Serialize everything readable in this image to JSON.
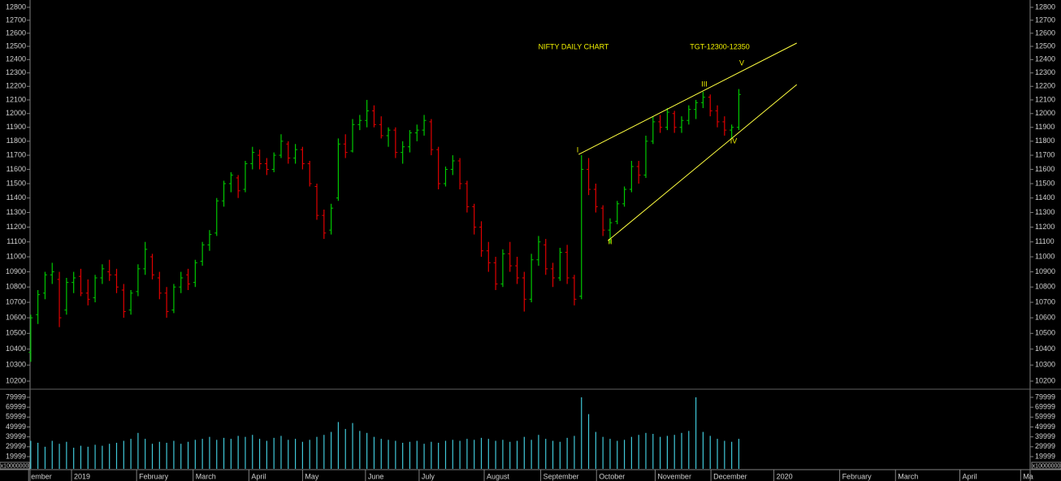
{
  "chart_data": {
    "type": "ohlc",
    "title": "NIFTY DAILY CHART",
    "annotations": [
      "TGT-12300-12350",
      "I",
      "II",
      "III",
      "IV",
      "V"
    ],
    "up_color": "#00c800",
    "down_color": "#e00000",
    "log_scale": true,
    "ylim": [
      10155,
      12857
    ],
    "yticks": [
      10200,
      10300,
      10400,
      10500,
      10600,
      10700,
      10800,
      10900,
      11000,
      11100,
      11200,
      11300,
      11400,
      11500,
      11600,
      11700,
      11800,
      11900,
      12000,
      12100,
      12200,
      12300,
      12400,
      12500,
      12600,
      12700,
      12800
    ],
    "xlim": [
      -4.3,
      139.5
    ],
    "xticks": [
      {
        "value": -0.3,
        "label": "ember"
      },
      {
        "value": 5.7,
        "label": "2019"
      },
      {
        "value": 14.8,
        "label": "February"
      },
      {
        "value": 22.7,
        "label": "March"
      },
      {
        "value": 30.5,
        "label": "April"
      },
      {
        "value": 38.0,
        "label": "May"
      },
      {
        "value": 46.8,
        "label": "June"
      },
      {
        "value": 54.3,
        "label": "July"
      },
      {
        "value": 63.4,
        "label": "August"
      },
      {
        "value": 71.3,
        "label": "September"
      },
      {
        "value": 79.1,
        "label": "October"
      },
      {
        "value": 87.3,
        "label": "November"
      },
      {
        "value": 95.1,
        "label": "December"
      },
      {
        "value": 103.9,
        "label": "2020"
      },
      {
        "value": 113.1,
        "label": "February"
      },
      {
        "value": 120.9,
        "label": "March"
      },
      {
        "value": 129.9,
        "label": "April"
      },
      {
        "value": 138.4,
        "label": "Ma"
      }
    ],
    "ohlc": [
      [
        10380,
        10620,
        10320,
        10600
      ],
      [
        10620,
        10780,
        10560,
        10750
      ],
      [
        10760,
        10900,
        10720,
        10880
      ],
      [
        10880,
        10960,
        10820,
        10900
      ],
      [
        10850,
        10900,
        10540,
        10600
      ],
      [
        10650,
        10860,
        10620,
        10830
      ],
      [
        10830,
        10900,
        10760,
        10860
      ],
      [
        10870,
        10920,
        10740,
        10760
      ],
      [
        10760,
        10850,
        10680,
        10720
      ],
      [
        10730,
        10880,
        10700,
        10860
      ],
      [
        10860,
        10950,
        10820,
        10920
      ],
      [
        10900,
        10980,
        10840,
        10880
      ],
      [
        10880,
        10920,
        10760,
        10800
      ],
      [
        10780,
        10820,
        10600,
        10640
      ],
      [
        10650,
        10780,
        10620,
        10760
      ],
      [
        10770,
        10950,
        10740,
        10920
      ],
      [
        10920,
        11100,
        10880,
        11050
      ],
      [
        11000,
        11020,
        10850,
        10880
      ],
      [
        10860,
        10900,
        10720,
        10760
      ],
      [
        10760,
        10800,
        10600,
        10640
      ],
      [
        10650,
        10820,
        10630,
        10800
      ],
      [
        10800,
        10900,
        10760,
        10860
      ],
      [
        10880,
        10920,
        10780,
        10820
      ],
      [
        10830,
        10980,
        10800,
        10960
      ],
      [
        10970,
        11100,
        10940,
        11080
      ],
      [
        11080,
        11180,
        11040,
        11150
      ],
      [
        11160,
        11400,
        11140,
        11380
      ],
      [
        11380,
        11520,
        11340,
        11500
      ],
      [
        11500,
        11580,
        11440,
        11560
      ],
      [
        11540,
        11560,
        11400,
        11450
      ],
      [
        11460,
        11660,
        11440,
        11640
      ],
      [
        11640,
        11760,
        11600,
        11720
      ],
      [
        11700,
        11740,
        11600,
        11640
      ],
      [
        11640,
        11680,
        11560,
        11600
      ],
      [
        11600,
        11720,
        11580,
        11700
      ],
      [
        11700,
        11850,
        11680,
        11800
      ],
      [
        11780,
        11800,
        11640,
        11680
      ],
      [
        11680,
        11780,
        11640,
        11740
      ],
      [
        11740,
        11760,
        11600,
        11640
      ],
      [
        11640,
        11660,
        11480,
        11500
      ],
      [
        11480,
        11500,
        11250,
        11280
      ],
      [
        11280,
        11320,
        11120,
        11160
      ],
      [
        11180,
        11360,
        11150,
        11330
      ],
      [
        11400,
        11820,
        11380,
        11780
      ],
      [
        11780,
        11850,
        11680,
        11720
      ],
      [
        11730,
        11960,
        11720,
        11920
      ],
      [
        11920,
        11990,
        11880,
        11950
      ],
      [
        11950,
        12100,
        11900,
        12020
      ],
      [
        12020,
        12060,
        11900,
        11920
      ],
      [
        11920,
        11980,
        11820,
        11840
      ],
      [
        11840,
        11900,
        11760,
        11880
      ],
      [
        11880,
        11900,
        11680,
        11720
      ],
      [
        11720,
        11800,
        11640,
        11760
      ],
      [
        11760,
        11880,
        11720,
        11860
      ],
      [
        11860,
        11920,
        11800,
        11880
      ],
      [
        11880,
        11990,
        11840,
        11950
      ],
      [
        11940,
        11960,
        11700,
        11740
      ],
      [
        11740,
        11760,
        11460,
        11500
      ],
      [
        11500,
        11620,
        11480,
        11600
      ],
      [
        11600,
        11700,
        11560,
        11660
      ],
      [
        11660,
        11680,
        11460,
        11500
      ],
      [
        11500,
        11520,
        11300,
        11340
      ],
      [
        11340,
        11360,
        11150,
        11200
      ],
      [
        11200,
        11240,
        11000,
        11040
      ],
      [
        11040,
        11100,
        10900,
        10960
      ],
      [
        10960,
        11000,
        10780,
        10820
      ],
      [
        10820,
        11050,
        10800,
        11020
      ],
      [
        11020,
        11100,
        10900,
        10940
      ],
      [
        10940,
        11000,
        10820,
        10860
      ],
      [
        10860,
        10900,
        10640,
        10720
      ],
      [
        10720,
        11020,
        10700,
        10980
      ],
      [
        10980,
        11140,
        10940,
        11100
      ],
      [
        11080,
        11120,
        10880,
        10920
      ],
      [
        10920,
        10960,
        10800,
        10860
      ],
      [
        10860,
        11060,
        10840,
        11030
      ],
      [
        11030,
        11080,
        10820,
        10860
      ],
      [
        10860,
        10880,
        10680,
        10720
      ],
      [
        10740,
        11700,
        10720,
        11600
      ],
      [
        11600,
        11680,
        11420,
        11460
      ],
      [
        11460,
        11500,
        11300,
        11340
      ],
      [
        11330,
        11350,
        11140,
        11180
      ],
      [
        11180,
        11260,
        11090,
        11230
      ],
      [
        11240,
        11380,
        11220,
        11360
      ],
      [
        11360,
        11480,
        11340,
        11460
      ],
      [
        11460,
        11660,
        11440,
        11620
      ],
      [
        11620,
        11660,
        11500,
        11560
      ],
      [
        11560,
        11840,
        11540,
        11800
      ],
      [
        11800,
        11980,
        11780,
        11940
      ],
      [
        11940,
        11990,
        11860,
        11900
      ],
      [
        11900,
        12040,
        11880,
        12010
      ],
      [
        12000,
        12020,
        11860,
        11900
      ],
      [
        11900,
        11980,
        11860,
        11950
      ],
      [
        11950,
        12060,
        11920,
        12030
      ],
      [
        12030,
        12100,
        11960,
        12080
      ],
      [
        12080,
        12160,
        12040,
        12120
      ],
      [
        12120,
        12140,
        11980,
        12020
      ],
      [
        12020,
        12060,
        11900,
        11940
      ],
      [
        11940,
        11980,
        11840,
        11880
      ],
      [
        11880,
        11920,
        11820,
        11900
      ],
      [
        11900,
        12180,
        11880,
        12140
      ]
    ],
    "trendlines": [
      {
        "x": [
          76.6,
          107.1
        ],
        "y": [
          11706,
          12525
        ],
        "color": "#ffff40"
      },
      {
        "x": [
          80.7,
          107.1
        ],
        "y": [
          11108,
          12213
        ],
        "color": "#ffff40"
      }
    ],
    "volume": {
      "color": "#40c8d8",
      "unit_label": "x10000000",
      "ylim": [
        7670,
        87400
      ],
      "yticks": [
        19999,
        29999,
        39999,
        49999,
        59999,
        69999,
        79999
      ],
      "values": [
        36000,
        34000,
        30000,
        36000,
        33000,
        35000,
        29000,
        31000,
        30000,
        32000,
        31000,
        33000,
        34000,
        36000,
        38000,
        44000,
        38000,
        33000,
        35000,
        34000,
        36000,
        33000,
        35000,
        37000,
        38000,
        40000,
        37000,
        39000,
        38000,
        41000,
        40000,
        42000,
        38000,
        36000,
        39000,
        41000,
        37000,
        38000,
        35000,
        37000,
        40000,
        42000,
        45000,
        55000,
        48000,
        54000,
        46000,
        44000,
        40000,
        38000,
        37000,
        36000,
        34000,
        35000,
        36000,
        33000,
        35000,
        34000,
        36000,
        37000,
        36000,
        38000,
        37000,
        39000,
        38000,
        36000,
        37000,
        35000,
        36000,
        40000,
        37000,
        42000,
        38000,
        36000,
        35000,
        39000,
        41000,
        80000,
        63000,
        45000,
        40000,
        38000,
        36000,
        37000,
        40000,
        42000,
        44000,
        43000,
        40000,
        41000,
        42000,
        44000,
        46000,
        80000,
        45000,
        41000,
        38000,
        36000,
        35000,
        38000
      ]
    }
  }
}
